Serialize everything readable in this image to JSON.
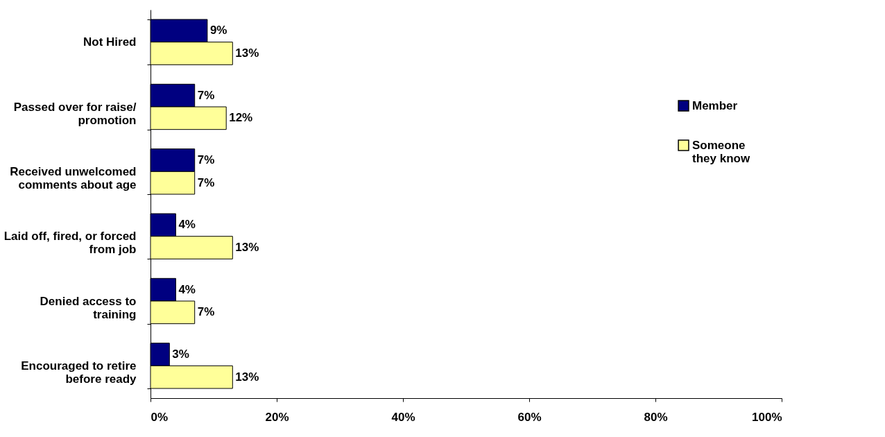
{
  "chart_data": {
    "type": "bar",
    "orientation": "horizontal",
    "categories": [
      "Not Hired",
      "Passed over for raise/\npromotion",
      "Received unwelcomed\ncomments about age",
      "Laid off, fired, or forced\nfrom job",
      "Denied access to\ntraining",
      "Encouraged to retire\nbefore ready"
    ],
    "series": [
      {
        "name": "Member",
        "color": "#000080",
        "values": [
          9,
          7,
          7,
          4,
          4,
          3
        ],
        "value_labels": [
          "9%",
          "7%",
          "7%",
          "4%",
          "4%",
          "3%"
        ]
      },
      {
        "name": "Someone\nthey know",
        "color": "#ffff99",
        "values": [
          13,
          12,
          7,
          13,
          7,
          13
        ],
        "value_labels": [
          "13%",
          "12%",
          "7%",
          "13%",
          "7%",
          "13%"
        ]
      }
    ],
    "xlim": [
      0,
      100
    ],
    "xticks": [
      {
        "value": 0,
        "label": "0%"
      },
      {
        "value": 20,
        "label": "20%"
      },
      {
        "value": 40,
        "label": "40%"
      },
      {
        "value": 60,
        "label": "60%"
      },
      {
        "value": 80,
        "label": "80%"
      },
      {
        "value": 100,
        "label": "100%"
      }
    ],
    "grid": false,
    "legend": "right"
  }
}
